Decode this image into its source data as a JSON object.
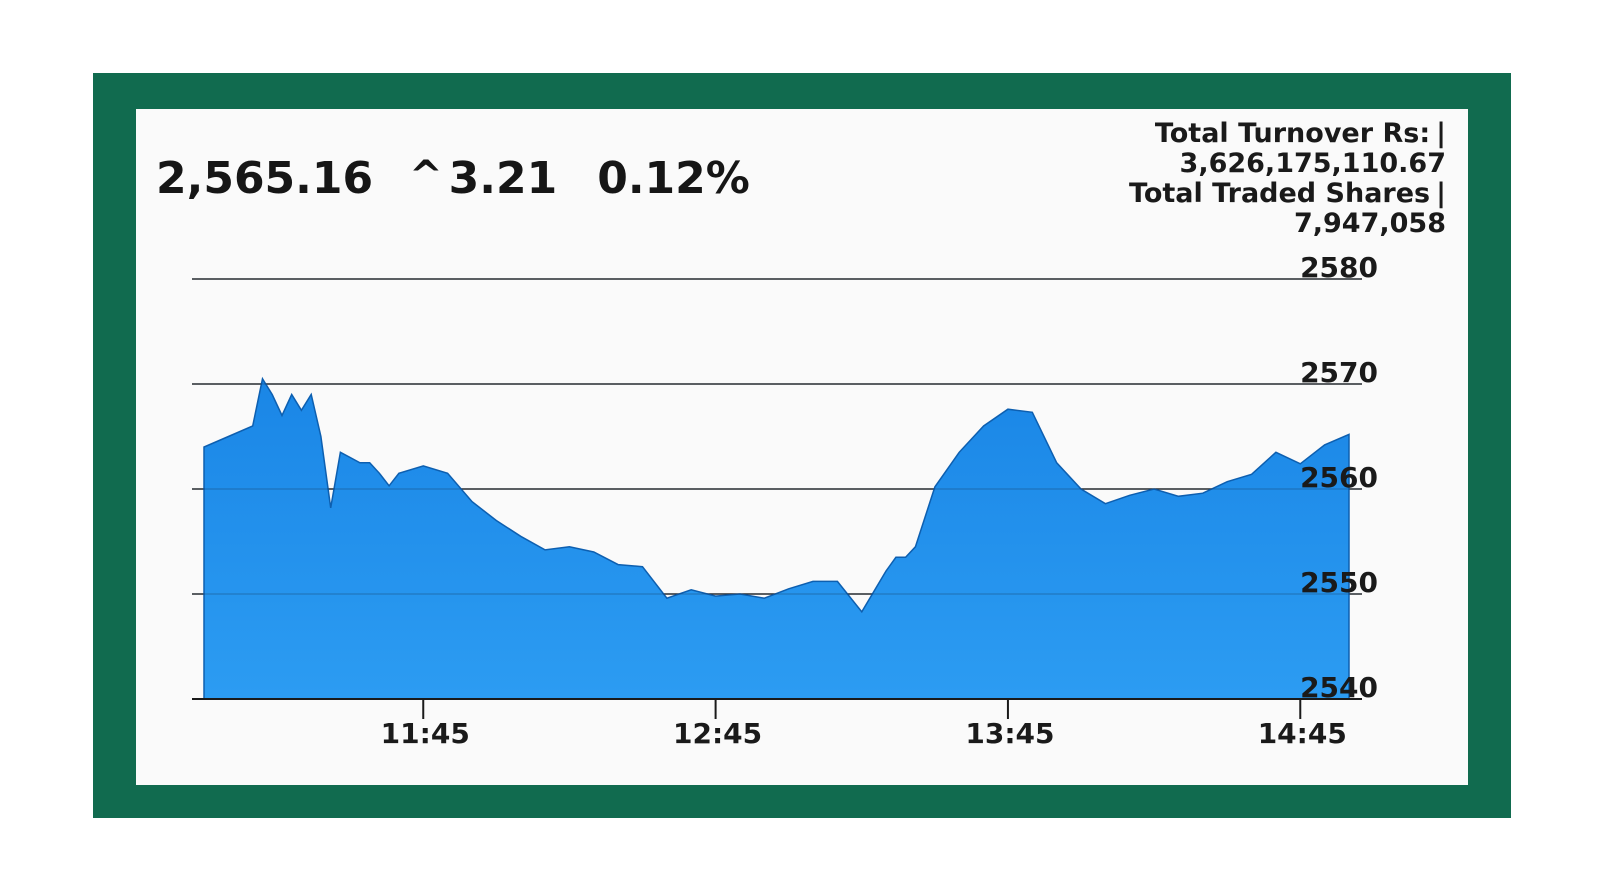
{
  "header": {
    "index_value": "2,565.16",
    "change_arrow": "^",
    "change_value": "3.21",
    "change_percent": "0.12%"
  },
  "stats": {
    "turnover_label": "Total Turnover Rs:",
    "turnover_value": "3,626,175,110.67",
    "shares_label": "Total Traded Shares",
    "shares_value": "7,947,058",
    "separator": "|"
  },
  "colors": {
    "frame": "#116b4f",
    "area_fill": "#1e90ee",
    "area_stroke": "#0d5fb0",
    "card": "#fafafa"
  },
  "chart_data": {
    "type": "area",
    "title": "",
    "xlabel": "",
    "ylabel": "",
    "ylim": [
      2540,
      2580
    ],
    "y_ticks": [
      "2580",
      "2570",
      "2560",
      "2550",
      "2540"
    ],
    "y_tick_values": [
      2580,
      2570,
      2560,
      2550,
      2540
    ],
    "x_ticks": [
      "11:45",
      "12:45",
      "13:45",
      "14:45"
    ],
    "x_tick_values": [
      "11:45",
      "12:45",
      "13:45",
      "14:45"
    ],
    "grid": true,
    "series": [
      {
        "x": [
          "11:00",
          "11:05",
          "11:10",
          "11:12",
          "11:14",
          "11:16",
          "11:18",
          "11:20",
          "11:22",
          "11:24",
          "11:26",
          "11:28",
          "11:30",
          "11:32",
          "11:34",
          "11:36",
          "11:38",
          "11:40",
          "11:45",
          "11:50",
          "11:55",
          "12:00",
          "12:05",
          "12:10",
          "12:15",
          "12:20",
          "12:25",
          "12:30",
          "12:35",
          "12:40",
          "12:45",
          "12:50",
          "12:55",
          "13:00",
          "13:05",
          "13:10",
          "13:15",
          "13:20",
          "13:22",
          "13:24",
          "13:26",
          "13:30",
          "13:35",
          "13:40",
          "13:45",
          "13:50",
          "13:55",
          "14:00",
          "14:05",
          "14:10",
          "14:15",
          "14:20",
          "14:25",
          "14:30",
          "14:35",
          "14:40",
          "14:45",
          "14:50",
          "14:55"
        ],
        "values": [
          2564.0,
          2565.0,
          2566.0,
          2570.5,
          2569.0,
          2567.0,
          2569.0,
          2567.5,
          2569.0,
          2565.0,
          2558.2,
          2563.5,
          2563.0,
          2562.5,
          2562.5,
          2561.5,
          2560.3,
          2561.5,
          2562.2,
          2561.5,
          2558.8,
          2557.0,
          2555.5,
          2554.2,
          2554.5,
          2554.0,
          2552.8,
          2552.6,
          2549.6,
          2550.4,
          2549.8,
          2550.0,
          2549.6,
          2550.5,
          2551.2,
          2551.2,
          2548.3,
          2552.2,
          2553.5,
          2553.5,
          2554.5,
          2560.2,
          2563.5,
          2566.0,
          2567.6,
          2567.3,
          2562.5,
          2560.0,
          2558.6,
          2559.4,
          2560.0,
          2559.3,
          2559.6,
          2560.7,
          2561.4,
          2563.5,
          2562.4,
          2564.2,
          2565.2
        ]
      }
    ]
  }
}
